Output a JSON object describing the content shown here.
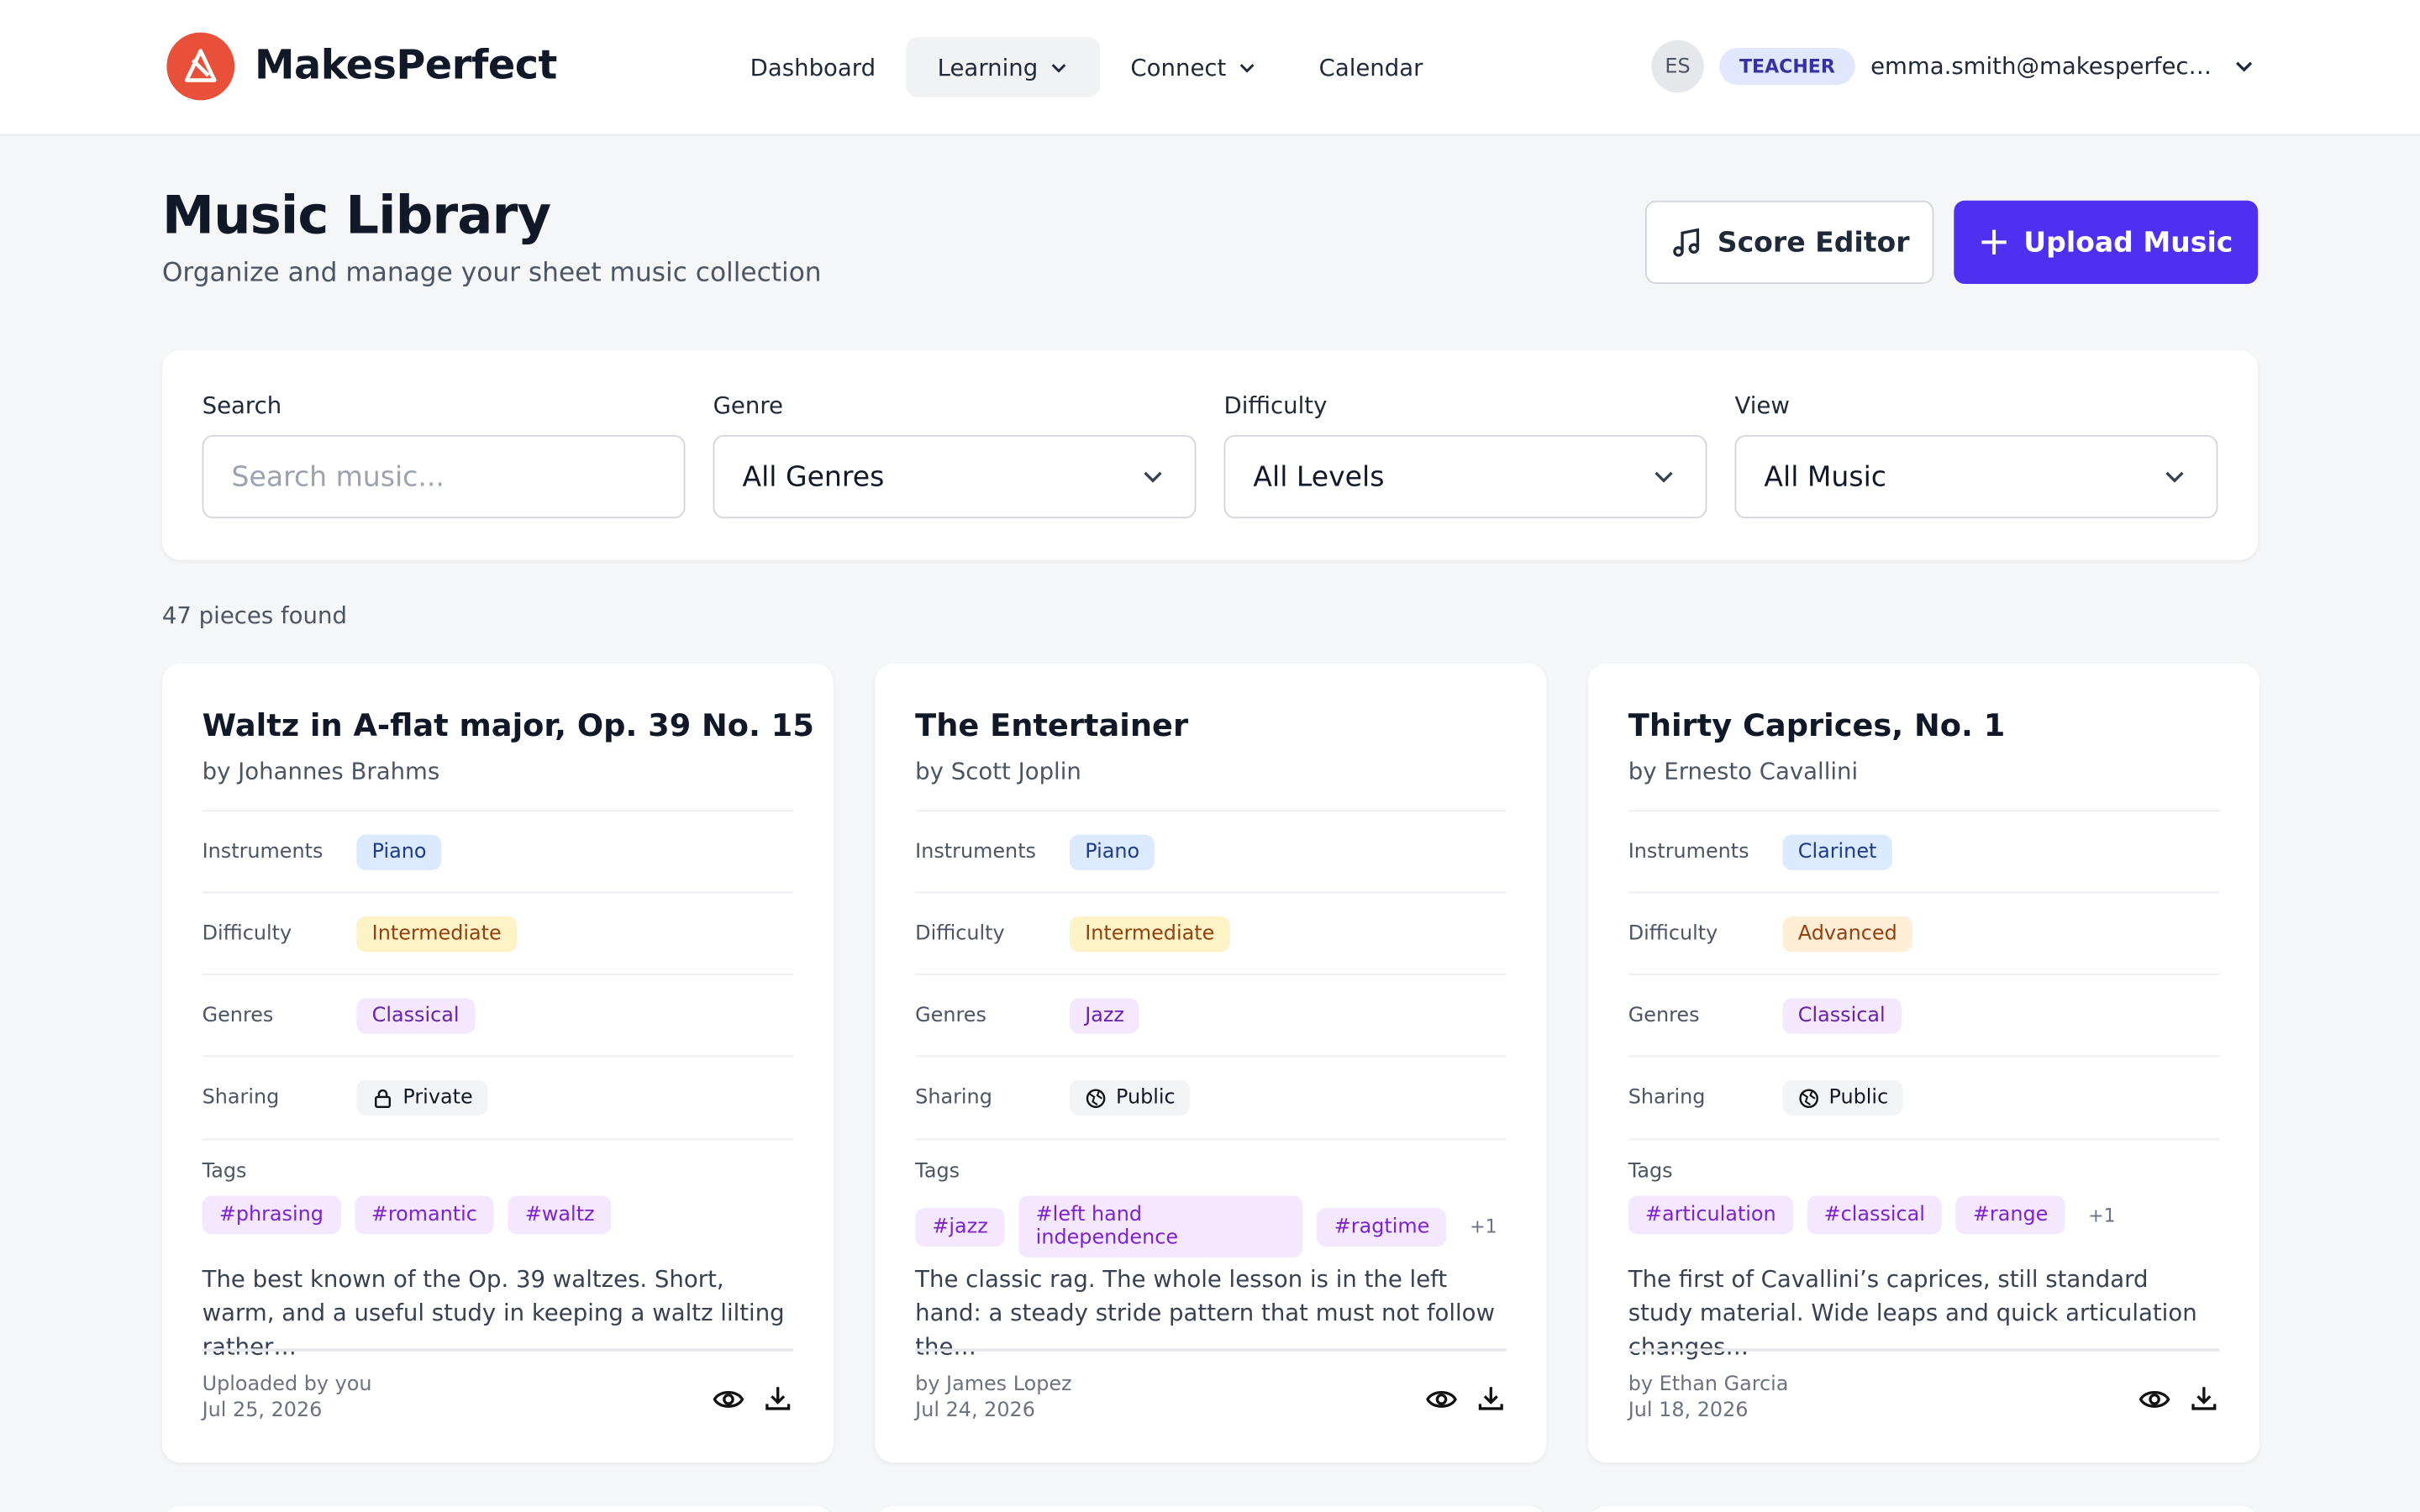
{
  "header": {
    "brand": "MakesPerfect",
    "nav": [
      "Dashboard",
      "Learning",
      "Connect",
      "Calendar"
    ],
    "user": {
      "initials": "ES",
      "role": "TEACHER",
      "email": "emma.smith@makesperfec…"
    }
  },
  "page": {
    "title": "Music Library",
    "subtitle": "Organize and manage your sheet music collection",
    "buttons": {
      "score_editor": "Score Editor",
      "upload": "Upload Music"
    }
  },
  "filters": [
    {
      "label": "Search",
      "placeholder": "Search music..."
    },
    {
      "label": "Genre",
      "value": "All Genres"
    },
    {
      "label": "Difficulty",
      "value": "All Levels"
    },
    {
      "label": "View",
      "value": "All Music"
    }
  ],
  "result_count": "47 pieces found",
  "field_labels": {
    "instruments": "Instruments",
    "difficulty": "Difficulty",
    "genres": "Genres",
    "sharing": "Sharing",
    "tags": "Tags"
  },
  "cards": [
    {
      "title": "Waltz in A-flat major, Op. 39 No. 15",
      "composer": "by Johannes Brahms",
      "instruments": "Piano",
      "difficulty": "Intermediate",
      "difficulty_color": "#fef3c7",
      "genres": "Classical",
      "sharing": "Private",
      "tags": [
        "#phrasing",
        "#romantic",
        "#waltz"
      ],
      "description": "The best known of the Op. 39 waltzes. Short, warm, and a useful study in keeping a waltz lilting rather…",
      "uploader": "Uploaded by you",
      "date": "Jul 25, 2026"
    },
    {
      "title": "The Entertainer",
      "composer": "by Scott Joplin",
      "instruments": "Piano",
      "difficulty": "Intermediate",
      "difficulty_color": "#fef3c7",
      "genres": "Jazz",
      "sharing": "Public",
      "tags": [
        "#jazz",
        "#left hand independence",
        "#ragtime"
      ],
      "more_tags": "+1",
      "description": "The classic rag. The whole lesson is in the left hand: a steady stride pattern that must not follow the…",
      "uploader": "by James Lopez",
      "date": "Jul 24, 2026"
    },
    {
      "title": "Thirty Caprices, No. 1",
      "composer": "by Ernesto Cavallini",
      "instruments": "Clarinet",
      "difficulty": "Advanced",
      "difficulty_color": "#ffedd5",
      "genres": "Classical",
      "sharing": "Public",
      "tags": [
        "#articulation",
        "#classical",
        "#range"
      ],
      "more_tags": "+1",
      "description": "The first of Cavallini’s caprices, still standard study material. Wide leaps and quick articulation changes…",
      "uploader": "by Ethan Garcia",
      "date": "Jul 18, 2026"
    }
  ]
}
